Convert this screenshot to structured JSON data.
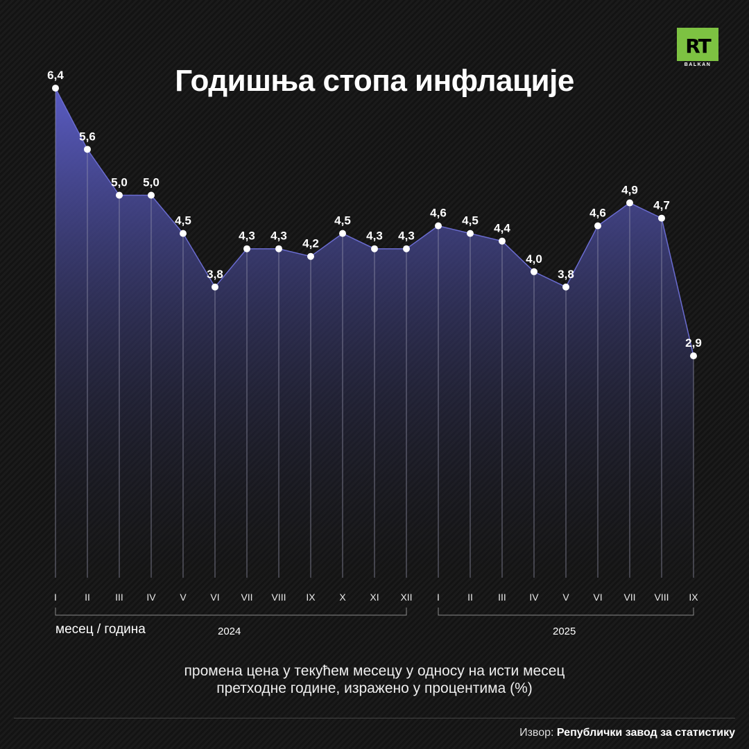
{
  "title": "Годишња стопа инфлације",
  "logo": {
    "text": "RT",
    "sub": "BALKAN"
  },
  "chart_data": {
    "type": "area",
    "title": "Годишња стопа инфлације",
    "xlabel": "месец / година",
    "categories": [
      "I",
      "II",
      "III",
      "IV",
      "V",
      "VI",
      "VII",
      "VIII",
      "IX",
      "X",
      "XI",
      "XII",
      "I",
      "II",
      "III",
      "IV",
      "V",
      "VI",
      "VII",
      "VIII",
      "IX"
    ],
    "values": [
      6.4,
      5.6,
      5.0,
      5.0,
      4.5,
      3.8,
      4.3,
      4.3,
      4.2,
      4.5,
      4.3,
      4.3,
      4.6,
      4.5,
      4.4,
      4.0,
      3.8,
      4.6,
      4.9,
      4.7,
      2.9
    ],
    "value_labels": [
      "6,4",
      "5,6",
      "5,0",
      "5,0",
      "4,5",
      "3,8",
      "4,3",
      "4,3",
      "4,2",
      "4,5",
      "4,3",
      "4,3",
      "4,6",
      "4,5",
      "4,4",
      "4,0",
      "3,8",
      "4,6",
      "4,9",
      "4,7",
      "2,9"
    ],
    "groups": [
      {
        "label": "2024",
        "count": 12
      },
      {
        "label": "2025",
        "count": 9
      }
    ],
    "ylim": [
      0,
      6.4
    ],
    "colors": {
      "fill_top": "#5a5cc4",
      "fill_bottom": "#161616",
      "marker": "#ffffff"
    }
  },
  "note_line1": "промена цена у текућем месецу у односу на исти месец",
  "note_line2": "претходне године, изражено у процентима (%)",
  "source_label": "Извор: ",
  "source_name": "Републички завод за статистику"
}
